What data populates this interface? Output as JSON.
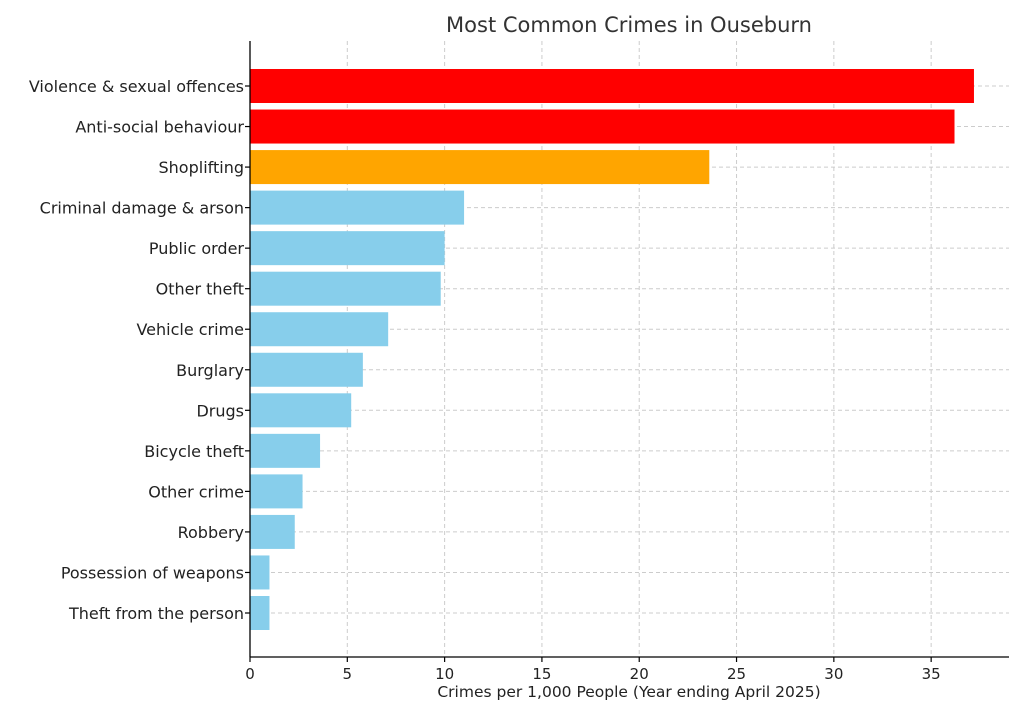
{
  "chart_data": {
    "type": "bar",
    "orientation": "horizontal",
    "title": "Most Common Crimes in Ouseburn",
    "xlabel": "Crimes per 1,000 People (Year ending April 2025)",
    "ylabel": "",
    "xlim": [
      0,
      39
    ],
    "xticks": [
      0,
      5,
      10,
      15,
      20,
      25,
      30,
      35
    ],
    "grid": true,
    "categories": [
      "Violence & sexual offences",
      "Anti-social behaviour",
      "Shoplifting",
      "Criminal damage & arson",
      "Public order",
      "Other theft",
      "Vehicle crime",
      "Burglary",
      "Drugs",
      "Bicycle theft",
      "Other crime",
      "Robbery",
      "Possession of weapons",
      "Theft from the person"
    ],
    "values": [
      37.2,
      36.2,
      23.6,
      11.0,
      10.0,
      9.8,
      7.1,
      5.8,
      5.2,
      3.6,
      2.7,
      2.3,
      1.0,
      1.0
    ],
    "colors": [
      "#ff0000",
      "#ff0000",
      "#ffa500",
      "#87ceeb",
      "#87ceeb",
      "#87ceeb",
      "#87ceeb",
      "#87ceeb",
      "#87ceeb",
      "#87ceeb",
      "#87ceeb",
      "#87ceeb",
      "#87ceeb",
      "#87ceeb"
    ]
  }
}
